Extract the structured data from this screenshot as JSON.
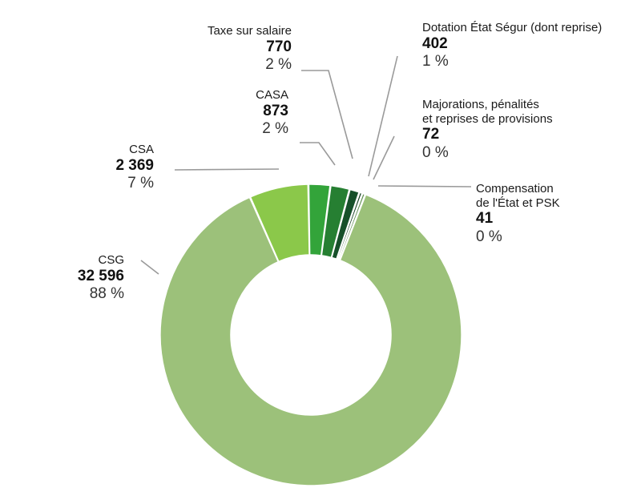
{
  "chart_data": {
    "type": "pie",
    "donut": true,
    "title": "",
    "slices": [
      {
        "name": "CSG",
        "value_label": "32 596",
        "value": 32596,
        "pct": "88 %",
        "color": "#9cc17a"
      },
      {
        "name": "CSA",
        "value_label": "2 369",
        "value": 2369,
        "pct": "7 %",
        "color": "#8bc84a"
      },
      {
        "name": "CASA",
        "value_label": "873",
        "value": 873,
        "pct": "2 %",
        "color": "#33a43a"
      },
      {
        "name": "Taxe sur salaire",
        "value_label": "770",
        "value": 770,
        "pct": "2 %",
        "color": "#267f32"
      },
      {
        "name": "Dotation État Ségur (dont reprise)",
        "value_label": "402",
        "value": 402,
        "pct": "1 %",
        "color": "#17502a"
      },
      {
        "name": "Majorations, pénalités et reprises de provisions",
        "name_lines": [
          "Majorations, pénalités",
          "et reprises de provisions"
        ],
        "value_label": "72",
        "value": 72,
        "pct": "0 %",
        "color": "#0f3a1c"
      },
      {
        "name": "Compensation de l'État et PSK",
        "name_lines": [
          "Compensation",
          "de l'État et PSK"
        ],
        "value_label": "41",
        "value": 41,
        "pct": "0 %",
        "color": "#5f8f52"
      }
    ]
  }
}
